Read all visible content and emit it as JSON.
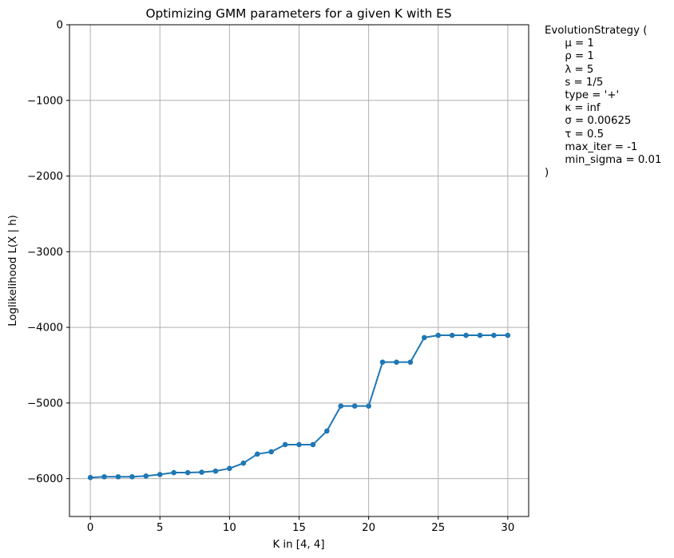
{
  "chart_data": {
    "type": "line",
    "title": "Optimizing GMM parameters for a given K with ES",
    "xlabel": "K in [4, 4]",
    "ylabel": "Loglikelihood L(X | h)",
    "xlim": [
      -1.5,
      31.5
    ],
    "ylim": [
      -6500,
      0
    ],
    "xticks": [
      0,
      5,
      10,
      15,
      20,
      25,
      30
    ],
    "yticks": [
      0,
      -1000,
      -2000,
      -3000,
      -4000,
      -5000,
      -6000
    ],
    "xtick_labels": [
      "0",
      "5",
      "10",
      "15",
      "20",
      "25",
      "30"
    ],
    "ytick_labels": [
      "0",
      "−1000",
      "−2000",
      "−3000",
      "−4000",
      "−5000",
      "−6000"
    ],
    "grid": true,
    "series": [
      {
        "color": "#1f77b4",
        "marker": "circle",
        "x": [
          0,
          1,
          2,
          3,
          4,
          5,
          6,
          7,
          8,
          9,
          10,
          11,
          12,
          13,
          14,
          15,
          16,
          17,
          18,
          19,
          20,
          21,
          22,
          23,
          24,
          25,
          26,
          27,
          28,
          29,
          30
        ],
        "y": [
          -5985,
          -5975,
          -5975,
          -5975,
          -5965,
          -5945,
          -5920,
          -5920,
          -5915,
          -5900,
          -5865,
          -5795,
          -5675,
          -5645,
          -5550,
          -5550,
          -5550,
          -5370,
          -5040,
          -5040,
          -5040,
          -4460,
          -4460,
          -4460,
          -4135,
          -4105,
          -4105,
          -4105,
          -4105,
          -4105,
          -4105
        ]
      }
    ]
  },
  "side_text": [
    "EvolutionStrategy (",
    "      μ = 1",
    "      ρ = 1",
    "      λ = 5",
    "      s = 1/5",
    "      type = '+'",
    "      κ = inf",
    "      σ = 0.00625",
    "      τ = 0.5",
    "      max_iter = -1",
    "      min_sigma = 0.01",
    ")"
  ]
}
